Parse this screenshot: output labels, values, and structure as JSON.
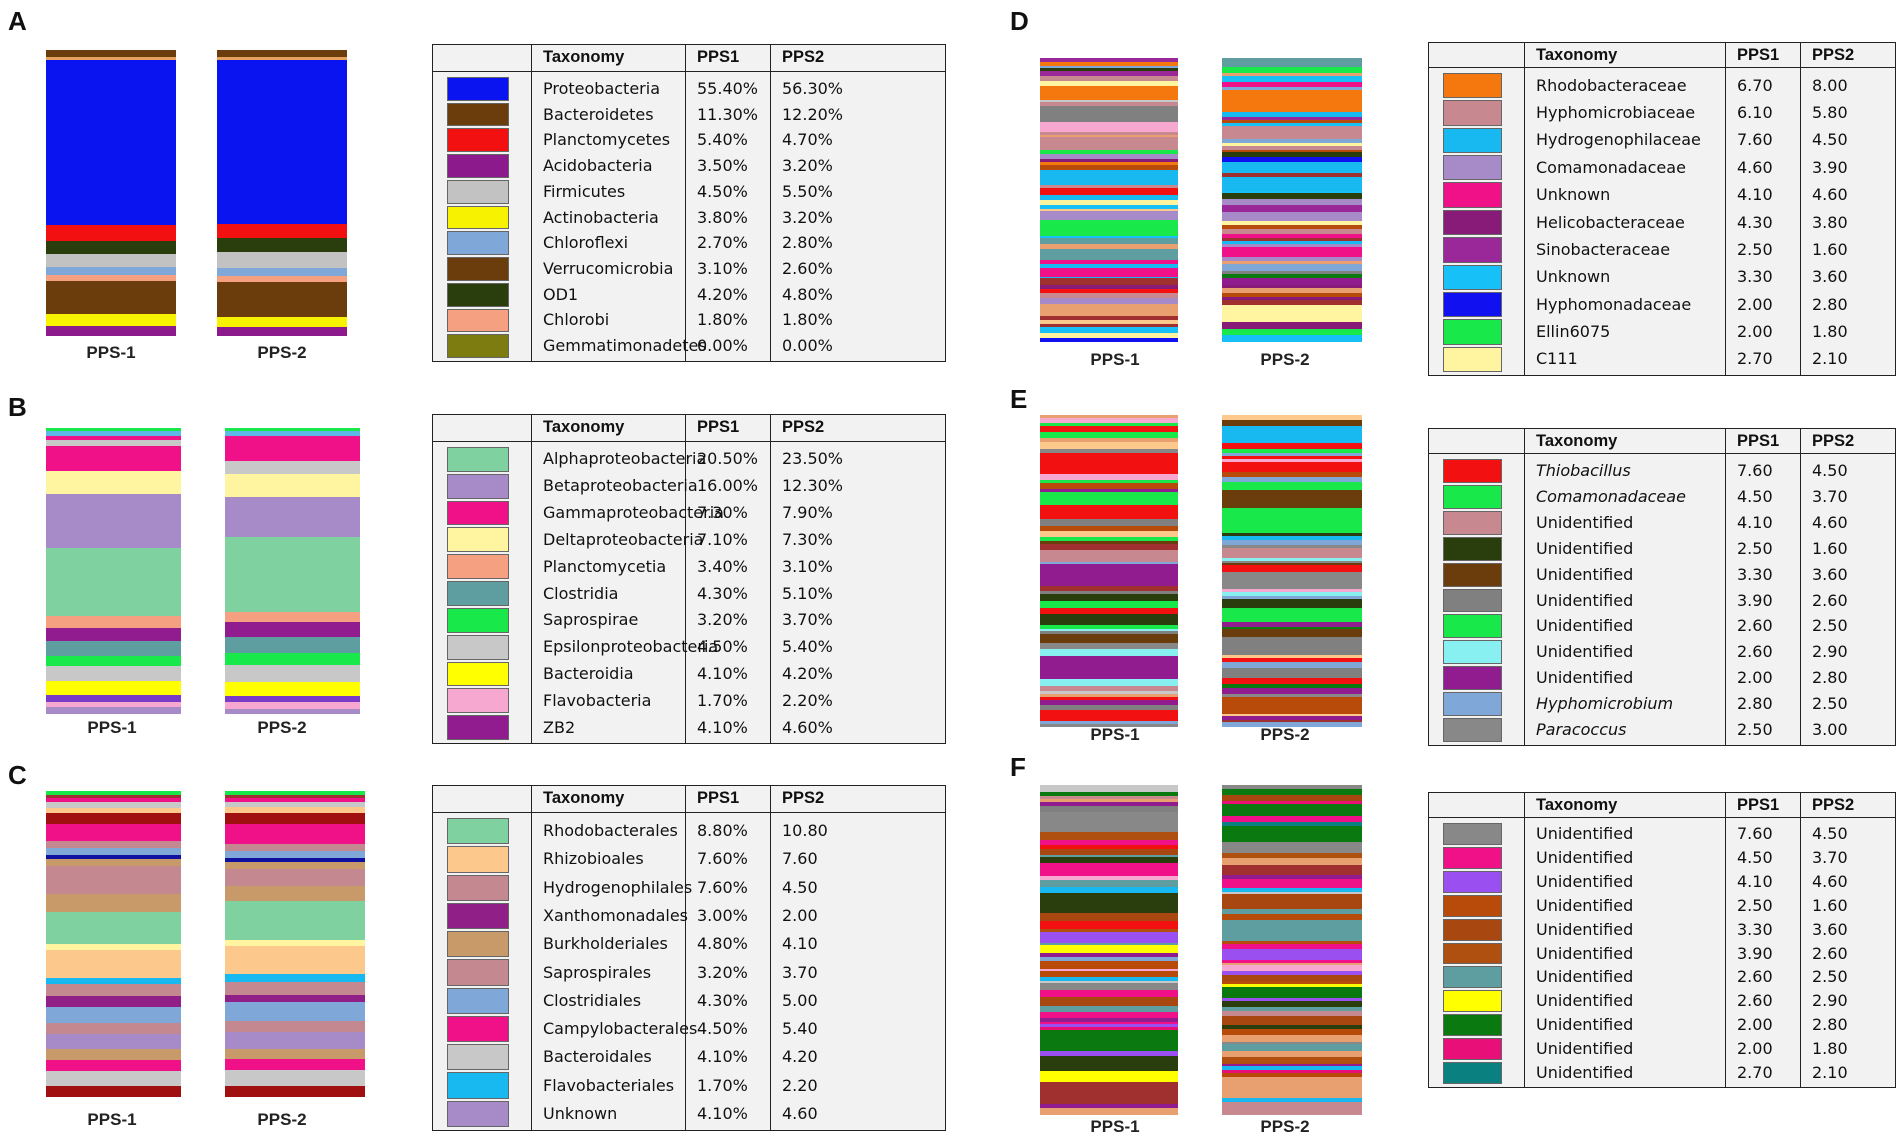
{
  "figure": {
    "bar_labels": [
      "PPS-1",
      "PPS-2"
    ],
    "header": {
      "taxonomy": "Taxonomy",
      "pps1": "PPS1",
      "pps2": "PPS2"
    }
  },
  "chart_data": [
    {
      "panel": "A",
      "type": "stacked-bar-table",
      "title": "A",
      "level": "phylum",
      "columns": [
        "PPS1",
        "PPS2"
      ],
      "rows": [
        {
          "taxon": "Proteobacteria",
          "color": "#0a14f0",
          "pps1": "55.40%",
          "pps2": "56.30%"
        },
        {
          "taxon": "Bacteroidetes",
          "color": "#6b3c0c",
          "pps1": "11.30%",
          "pps2": "12.20%"
        },
        {
          "taxon": "Planctomycetes",
          "color": "#f21010",
          "pps1": "5.40%",
          "pps2": "4.70%"
        },
        {
          "taxon": "Acidobacteria",
          "color": "#8c1a8c",
          "pps1": "3.50%",
          "pps2": "3.20%"
        },
        {
          "taxon": "Firmicutes",
          "color": "#c2c2c2",
          "pps1": "4.50%",
          "pps2": "5.50%"
        },
        {
          "taxon": "Actinobacteria",
          "color": "#f7f200",
          "pps1": "3.80%",
          "pps2": "3.20%"
        },
        {
          "taxon": "Chloroflexi",
          "color": "#7fa8d8",
          "pps1": "2.70%",
          "pps2": "2.80%"
        },
        {
          "taxon": "Verrucomicrobia",
          "color": "#6b3c0c",
          "pps1": "3.10%",
          "pps2": "2.60%"
        },
        {
          "taxon": "OD1",
          "color": "#2a3d0c",
          "pps1": "4.20%",
          "pps2": "4.80%"
        },
        {
          "taxon": "Chlorobi",
          "color": "#f5a080",
          "pps1": "1.80%",
          "pps2": "1.80%"
        },
        {
          "taxon": "Gemmatimonadetes",
          "color": "#7c7c10",
          "pps1": "0.00%",
          "pps2": "0.00%"
        }
      ],
      "stacks": [
        [
          [
            "#6b3c0c",
            2.5
          ],
          [
            "#e6a060",
            1
          ],
          [
            "#0a14f0",
            55.4
          ],
          [
            "#f21010",
            5.4
          ],
          [
            "#2a3d0c",
            4.2
          ],
          [
            "#c2c2c2",
            4.5
          ],
          [
            "#7fa8d8",
            2.7
          ],
          [
            "#f5a080",
            1.8
          ],
          [
            "#6b3c0c",
            11.3
          ],
          [
            "#f7f200",
            3.8
          ],
          [
            "#8c1a8c",
            3.5
          ]
        ],
        [
          [
            "#6b3c0c",
            2.5
          ],
          [
            "#e6a060",
            1
          ],
          [
            "#0a14f0",
            56.3
          ],
          [
            "#f21010",
            4.7
          ],
          [
            "#2a3d0c",
            4.8
          ],
          [
            "#c2c2c2",
            5.5
          ],
          [
            "#7fa8d8",
            2.8
          ],
          [
            "#f5a080",
            1.8
          ],
          [
            "#6b3c0c",
            12.2
          ],
          [
            "#f7f200",
            3.2
          ],
          [
            "#8c1a8c",
            3.2
          ]
        ]
      ]
    },
    {
      "panel": "B",
      "type": "stacked-bar-table",
      "title": "B",
      "level": "class",
      "columns": [
        "PPS1",
        "PPS2"
      ],
      "rows": [
        {
          "taxon": "Alphaproteobacteria",
          "color": "#7fd1a0",
          "pps1": "20.50%",
          "pps2": "23.50%"
        },
        {
          "taxon": "Betaproteobacteria",
          "color": "#a78bc8",
          "pps1": "16.00%",
          "pps2": "12.30%"
        },
        {
          "taxon": "Gammaproteobacteria",
          "color": "#f01088",
          "pps1": "7.30%",
          "pps2": "7.90%"
        },
        {
          "taxon": "Deltaproteobacteria",
          "color": "#fff4a0",
          "pps1": "7.10%",
          "pps2": "7.30%"
        },
        {
          "taxon": "Planctomycetia",
          "color": "#f5a080",
          "pps1": "3.40%",
          "pps2": "3.10%"
        },
        {
          "taxon": "Clostridia",
          "color": "#5f9ea0",
          "pps1": "4.30%",
          "pps2": "5.10%"
        },
        {
          "taxon": "Saprospirae",
          "color": "#18e84a",
          "pps1": "3.20%",
          "pps2": "3.70%"
        },
        {
          "taxon": "Epsilonproteobacteria",
          "color": "#c8c8c8",
          "pps1": "4.50%",
          "pps2": "5.40%"
        },
        {
          "taxon": "Bacteroidia",
          "color": "#ffff00",
          "pps1": "4.10%",
          "pps2": "4.20%"
        },
        {
          "taxon": "Flavobacteria",
          "color": "#f7a8d0",
          "pps1": "1.70%",
          "pps2": "2.20%"
        },
        {
          "taxon": "ZB2",
          "color": "#901c90",
          "pps1": "4.10%",
          "pps2": "4.60%"
        }
      ],
      "stacks": [
        [
          [
            "#18e84a",
            1
          ],
          [
            "#5fb8e8",
            1.5
          ],
          [
            "#f01088",
            1
          ],
          [
            "#c8c8c8",
            2
          ],
          [
            "#f01088",
            7.3
          ],
          [
            "#fff4a0",
            7.1
          ],
          [
            "#a78bc8",
            16
          ],
          [
            "#7fd1a0",
            20.5
          ],
          [
            "#f5a080",
            3.4
          ],
          [
            "#901c90",
            4.1
          ],
          [
            "#5f9ea0",
            4.3
          ],
          [
            "#18e84a",
            3.2
          ],
          [
            "#c8c8c8",
            4.5
          ],
          [
            "#ffff00",
            4.1
          ],
          [
            "#7a3cc8",
            2
          ],
          [
            "#f7a8d0",
            1.7
          ],
          [
            "#a78bc8",
            2
          ]
        ],
        [
          [
            "#18e84a",
            1
          ],
          [
            "#5fb8e8",
            1.5
          ],
          [
            "#f01088",
            7.9
          ],
          [
            "#c8c8c8",
            4
          ],
          [
            "#fff4a0",
            7.3
          ],
          [
            "#a78bc8",
            12.3
          ],
          [
            "#7fd1a0",
            23.5
          ],
          [
            "#f5a080",
            3.1
          ],
          [
            "#901c90",
            4.6
          ],
          [
            "#5f9ea0",
            5.1
          ],
          [
            "#18e84a",
            3.7
          ],
          [
            "#c8c8c8",
            5.4
          ],
          [
            "#ffff00",
            4.2
          ],
          [
            "#7a3cc8",
            2
          ],
          [
            "#f7a8d0",
            2.2
          ],
          [
            "#a78bc8",
            1.5
          ]
        ]
      ]
    },
    {
      "panel": "C",
      "type": "stacked-bar-table",
      "title": "C",
      "level": "order",
      "columns": [
        "PPS1",
        "PPS2"
      ],
      "rows": [
        {
          "taxon": "Rhodobacterales",
          "color": "#7fd1a0",
          "pps1": "8.80%",
          "pps2": "10.80"
        },
        {
          "taxon": "Rhizobioales",
          "color": "#fcc88c",
          "pps1": "7.60%",
          "pps2": "7.60"
        },
        {
          "taxon": "Hydrogenophilales",
          "color": "#c48890",
          "pps1": "7.60%",
          "pps2": "4.50"
        },
        {
          "taxon": "Xanthomonadales",
          "color": "#902088",
          "pps1": "3.00%",
          "pps2": "2.00"
        },
        {
          "taxon": "Burkholderiales",
          "color": "#c89a6a",
          "pps1": "4.80%",
          "pps2": "4.10"
        },
        {
          "taxon": "Saprospirales",
          "color": "#c48890",
          "pps1": "3.20%",
          "pps2": "3.70"
        },
        {
          "taxon": "Clostridiales",
          "color": "#7fa8d8",
          "pps1": "4.30%",
          "pps2": "5.00"
        },
        {
          "taxon": "Campylobacterales",
          "color": "#f01088",
          "pps1": "4.50%",
          "pps2": "5.40"
        },
        {
          "taxon": "Bacteroidales",
          "color": "#c8c8c8",
          "pps1": "4.10%",
          "pps2": "4.20"
        },
        {
          "taxon": "Flavobacteriales",
          "color": "#18b8f0",
          "pps1": "1.70%",
          "pps2": "2.20"
        },
        {
          "taxon": "Unknown",
          "color": "#a78bc8",
          "pps1": "4.10%",
          "pps2": "4.60"
        }
      ],
      "stacks": [
        [
          [
            "#18e84a",
            1
          ],
          [
            "#a03030",
            1
          ],
          [
            "#f01088",
            1
          ],
          [
            "#c8c8c8",
            1.5
          ],
          [
            "#fcc88c",
            1.5
          ],
          [
            "#a01010",
            3
          ],
          [
            "#f01088",
            4.5
          ],
          [
            "#c48890",
            2
          ],
          [
            "#7fa8d8",
            2
          ],
          [
            "#1010a0",
            1
          ],
          [
            "#c89a6a",
            2
          ],
          [
            "#c48890",
            7.6
          ],
          [
            "#c89a6a",
            4.8
          ],
          [
            "#7fd1a0",
            8.8
          ],
          [
            "#fff4a0",
            1.5
          ],
          [
            "#fcc88c",
            7.6
          ],
          [
            "#18b8f0",
            1.7
          ],
          [
            "#c48890",
            3.2
          ],
          [
            "#902088",
            3
          ],
          [
            "#7fa8d8",
            4.3
          ],
          [
            "#c48890",
            3
          ],
          [
            "#a78bc8",
            4.1
          ],
          [
            "#c89a6a",
            3
          ],
          [
            "#f01088",
            3
          ],
          [
            "#c8c8c8",
            4.1
          ],
          [
            "#a01010",
            3
          ]
        ],
        [
          [
            "#18e84a",
            1
          ],
          [
            "#a03030",
            1
          ],
          [
            "#f01088",
            1
          ],
          [
            "#c8c8c8",
            1.5
          ],
          [
            "#fcc88c",
            1.5
          ],
          [
            "#a01010",
            3
          ],
          [
            "#f01088",
            5.4
          ],
          [
            "#c48890",
            2
          ],
          [
            "#7fa8d8",
            2
          ],
          [
            "#1010a0",
            1
          ],
          [
            "#c89a6a",
            2
          ],
          [
            "#c48890",
            4.5
          ],
          [
            "#c89a6a",
            4.1
          ],
          [
            "#7fd1a0",
            10.8
          ],
          [
            "#fff4a0",
            1.5
          ],
          [
            "#fcc88c",
            7.6
          ],
          [
            "#18b8f0",
            2.2
          ],
          [
            "#c48890",
            3.7
          ],
          [
            "#902088",
            2
          ],
          [
            "#7fa8d8",
            5
          ],
          [
            "#c48890",
            3
          ],
          [
            "#a78bc8",
            4.6
          ],
          [
            "#c89a6a",
            3
          ],
          [
            "#f01088",
            3
          ],
          [
            "#c8c8c8",
            4.2
          ],
          [
            "#a01010",
            3
          ]
        ]
      ]
    },
    {
      "panel": "D",
      "type": "stacked-bar-table",
      "title": "D",
      "level": "family",
      "columns": [
        "PPS1",
        "PPS2"
      ],
      "rows": [
        {
          "taxon": "Rhodobacteraceae",
          "color": "#f5780e",
          "pps1": "6.70",
          "pps2": "8.00"
        },
        {
          "taxon": "Hyphomicrobiaceae",
          "color": "#c88890",
          "pps1": "6.10",
          "pps2": "5.80"
        },
        {
          "taxon": "Hydrogenophilaceae",
          "color": "#18b8f0",
          "pps1": "7.60",
          "pps2": "4.50"
        },
        {
          "taxon": "Comamonadaceae",
          "color": "#a78bc8",
          "pps1": "4.60",
          "pps2": "3.90"
        },
        {
          "taxon": "Unknown",
          "color": "#f01088",
          "pps1": "4.10",
          "pps2": "4.60"
        },
        {
          "taxon": "Helicobacteraceae",
          "color": "#881a78",
          "pps1": "4.30",
          "pps2": "3.80"
        },
        {
          "taxon": "Sinobacteraceae",
          "color": "#9a2898",
          "pps1": "2.50",
          "pps2": "1.60"
        },
        {
          "taxon": "Unknown",
          "color": "#18c0f8",
          "pps1": "3.30",
          "pps2": "3.60"
        },
        {
          "taxon": "Hyphomonadaceae",
          "color": "#1010f0",
          "pps1": "2.00",
          "pps2": "2.80"
        },
        {
          "taxon": "Ellin6075",
          "color": "#18e84a",
          "pps1": "2.00",
          "pps2": "1.80"
        },
        {
          "taxon": "C111",
          "color": "#fff4a0",
          "pps1": "2.70",
          "pps2": "2.10"
        }
      ]
    },
    {
      "panel": "E",
      "type": "stacked-bar-table",
      "title": "E",
      "level": "genus",
      "columns": [
        "PPS1",
        "PPS2"
      ],
      "rows": [
        {
          "taxon": "Thiobacillus",
          "italic": true,
          "color": "#f21010",
          "pps1": "7.60",
          "pps2": "4.50"
        },
        {
          "taxon": "Comamonadaceae",
          "italic": true,
          "color": "#18e84a",
          "pps1": "4.50",
          "pps2": "3.70"
        },
        {
          "taxon": "Unidentified",
          "color": "#c88890",
          "pps1": "4.10",
          "pps2": "4.60"
        },
        {
          "taxon": "Unidentified",
          "color": "#2a3d0c",
          "pps1": "2.50",
          "pps2": "1.60"
        },
        {
          "taxon": "Unidentified",
          "color": "#6b3c0c",
          "pps1": "3.30",
          "pps2": "3.60"
        },
        {
          "taxon": "Unidentified",
          "color": "#808080",
          "pps1": "3.90",
          "pps2": "2.60"
        },
        {
          "taxon": "Unidentified",
          "color": "#18e84a",
          "pps1": "2.60",
          "pps2": "2.50"
        },
        {
          "taxon": "Unidentified",
          "color": "#88f0f0",
          "pps1": "2.60",
          "pps2": "2.90"
        },
        {
          "taxon": "Unidentified",
          "color": "#901c90",
          "pps1": "2.00",
          "pps2": "2.80"
        },
        {
          "taxon": "Hyphomicrobium",
          "italic": true,
          "color": "#7fa8d8",
          "pps1": "2.80",
          "pps2": "2.50"
        },
        {
          "taxon": "Paracoccus",
          "italic": true,
          "color": "#888888",
          "pps1": "2.50",
          "pps2": "3.00"
        }
      ]
    },
    {
      "panel": "F",
      "type": "stacked-bar-table",
      "title": "F",
      "level": "species",
      "columns": [
        "PPS1",
        "PPS2"
      ],
      "rows": [
        {
          "taxon": "Unidentified",
          "color": "#888888",
          "pps1": "7.60",
          "pps2": "4.50"
        },
        {
          "taxon": "Unidentified",
          "color": "#f01088",
          "pps1": "4.50",
          "pps2": "3.70"
        },
        {
          "taxon": "Unidentified",
          "color": "#9a50f0",
          "pps1": "4.10",
          "pps2": "4.60"
        },
        {
          "taxon": "Unidentified",
          "color": "#b84a0a",
          "pps1": "2.50",
          "pps2": "1.60"
        },
        {
          "taxon": "Unidentified",
          "color": "#a84810",
          "pps1": "3.30",
          "pps2": "3.60"
        },
        {
          "taxon": "Unidentified",
          "color": "#b05010",
          "pps1": "3.90",
          "pps2": "2.60"
        },
        {
          "taxon": "Unidentified",
          "color": "#5f9ea0",
          "pps1": "2.60",
          "pps2": "2.50"
        },
        {
          "taxon": "Unidentified",
          "color": "#ffff00",
          "pps1": "2.60",
          "pps2": "2.90"
        },
        {
          "taxon": "Unidentified",
          "color": "#0a7a10",
          "pps1": "2.00",
          "pps2": "2.80"
        },
        {
          "taxon": "Unidentified",
          "color": "#e81078",
          "pps1": "2.00",
          "pps2": "1.80"
        },
        {
          "taxon": "Unidentified",
          "color": "#0a8080",
          "pps1": "2.70",
          "pps2": "2.10"
        }
      ]
    }
  ]
}
